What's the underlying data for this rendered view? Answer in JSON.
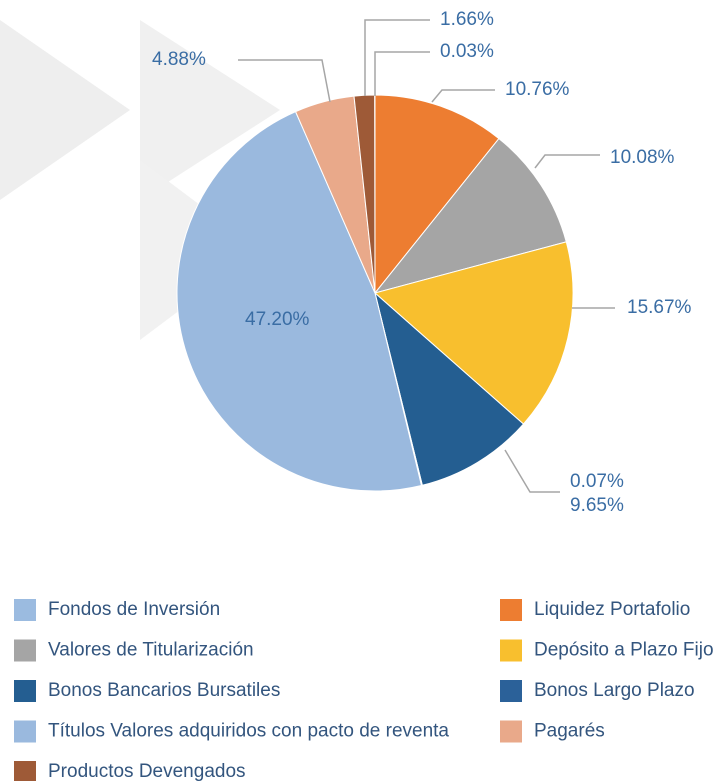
{
  "chart_data": {
    "type": "pie",
    "categories": [
      "Fondos de Inversión",
      "Liquidez Portafolio",
      "Valores de Titularización",
      "Depósito a Plazo Fijo",
      "Bonos Bancarios Bursatiles",
      "Bonos Largo Plazo",
      "Títulos Valores adquiridos con pacto de reventa",
      "Pagarés",
      "Productos Devengados"
    ],
    "values": [
      0.03,
      10.76,
      10.08,
      15.67,
      9.65,
      0.07,
      47.2,
      4.88,
      1.66
    ],
    "value_labels": [
      "0.03%",
      "10.76%",
      "10.08%",
      "15.67%",
      "9.65%",
      "0.07%",
      "47.20%",
      "4.88%",
      "1.66%"
    ],
    "colors": [
      "#9bbbe0",
      "#ed7d31",
      "#a5a5a5",
      "#f8bf2e",
      "#245e91",
      "#2b6199",
      "#9ab9de",
      "#e9a98a",
      "#9e5a37"
    ],
    "legend": "bottom"
  }
}
